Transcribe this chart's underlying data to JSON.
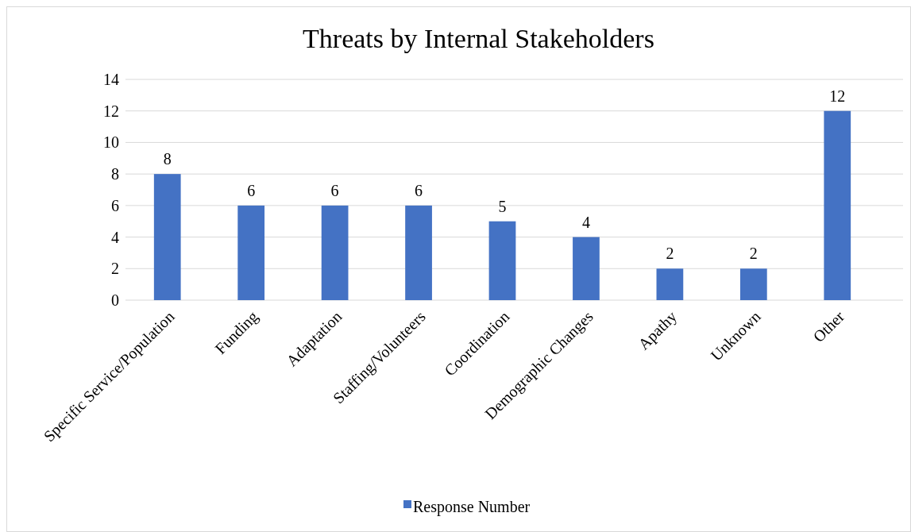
{
  "chart_data": {
    "type": "bar",
    "title": "Threats by Internal Stakeholders",
    "categories": [
      "Specific Service/Population",
      "Funding",
      "Adaptation",
      "Staffing/Volunteers",
      "Coordination",
      "Demographic Changes",
      "Apathy",
      "Unknown",
      "Other"
    ],
    "series": [
      {
        "name": "Response Number",
        "color": "#4472c4",
        "values": [
          8,
          6,
          6,
          6,
          5,
          4,
          2,
          2,
          12
        ]
      }
    ],
    "ylim": [
      0,
      14
    ],
    "yticks": [
      0,
      2,
      4,
      6,
      8,
      10,
      12,
      14
    ],
    "grid": "y",
    "legend": "bottom",
    "data_labels": true
  }
}
